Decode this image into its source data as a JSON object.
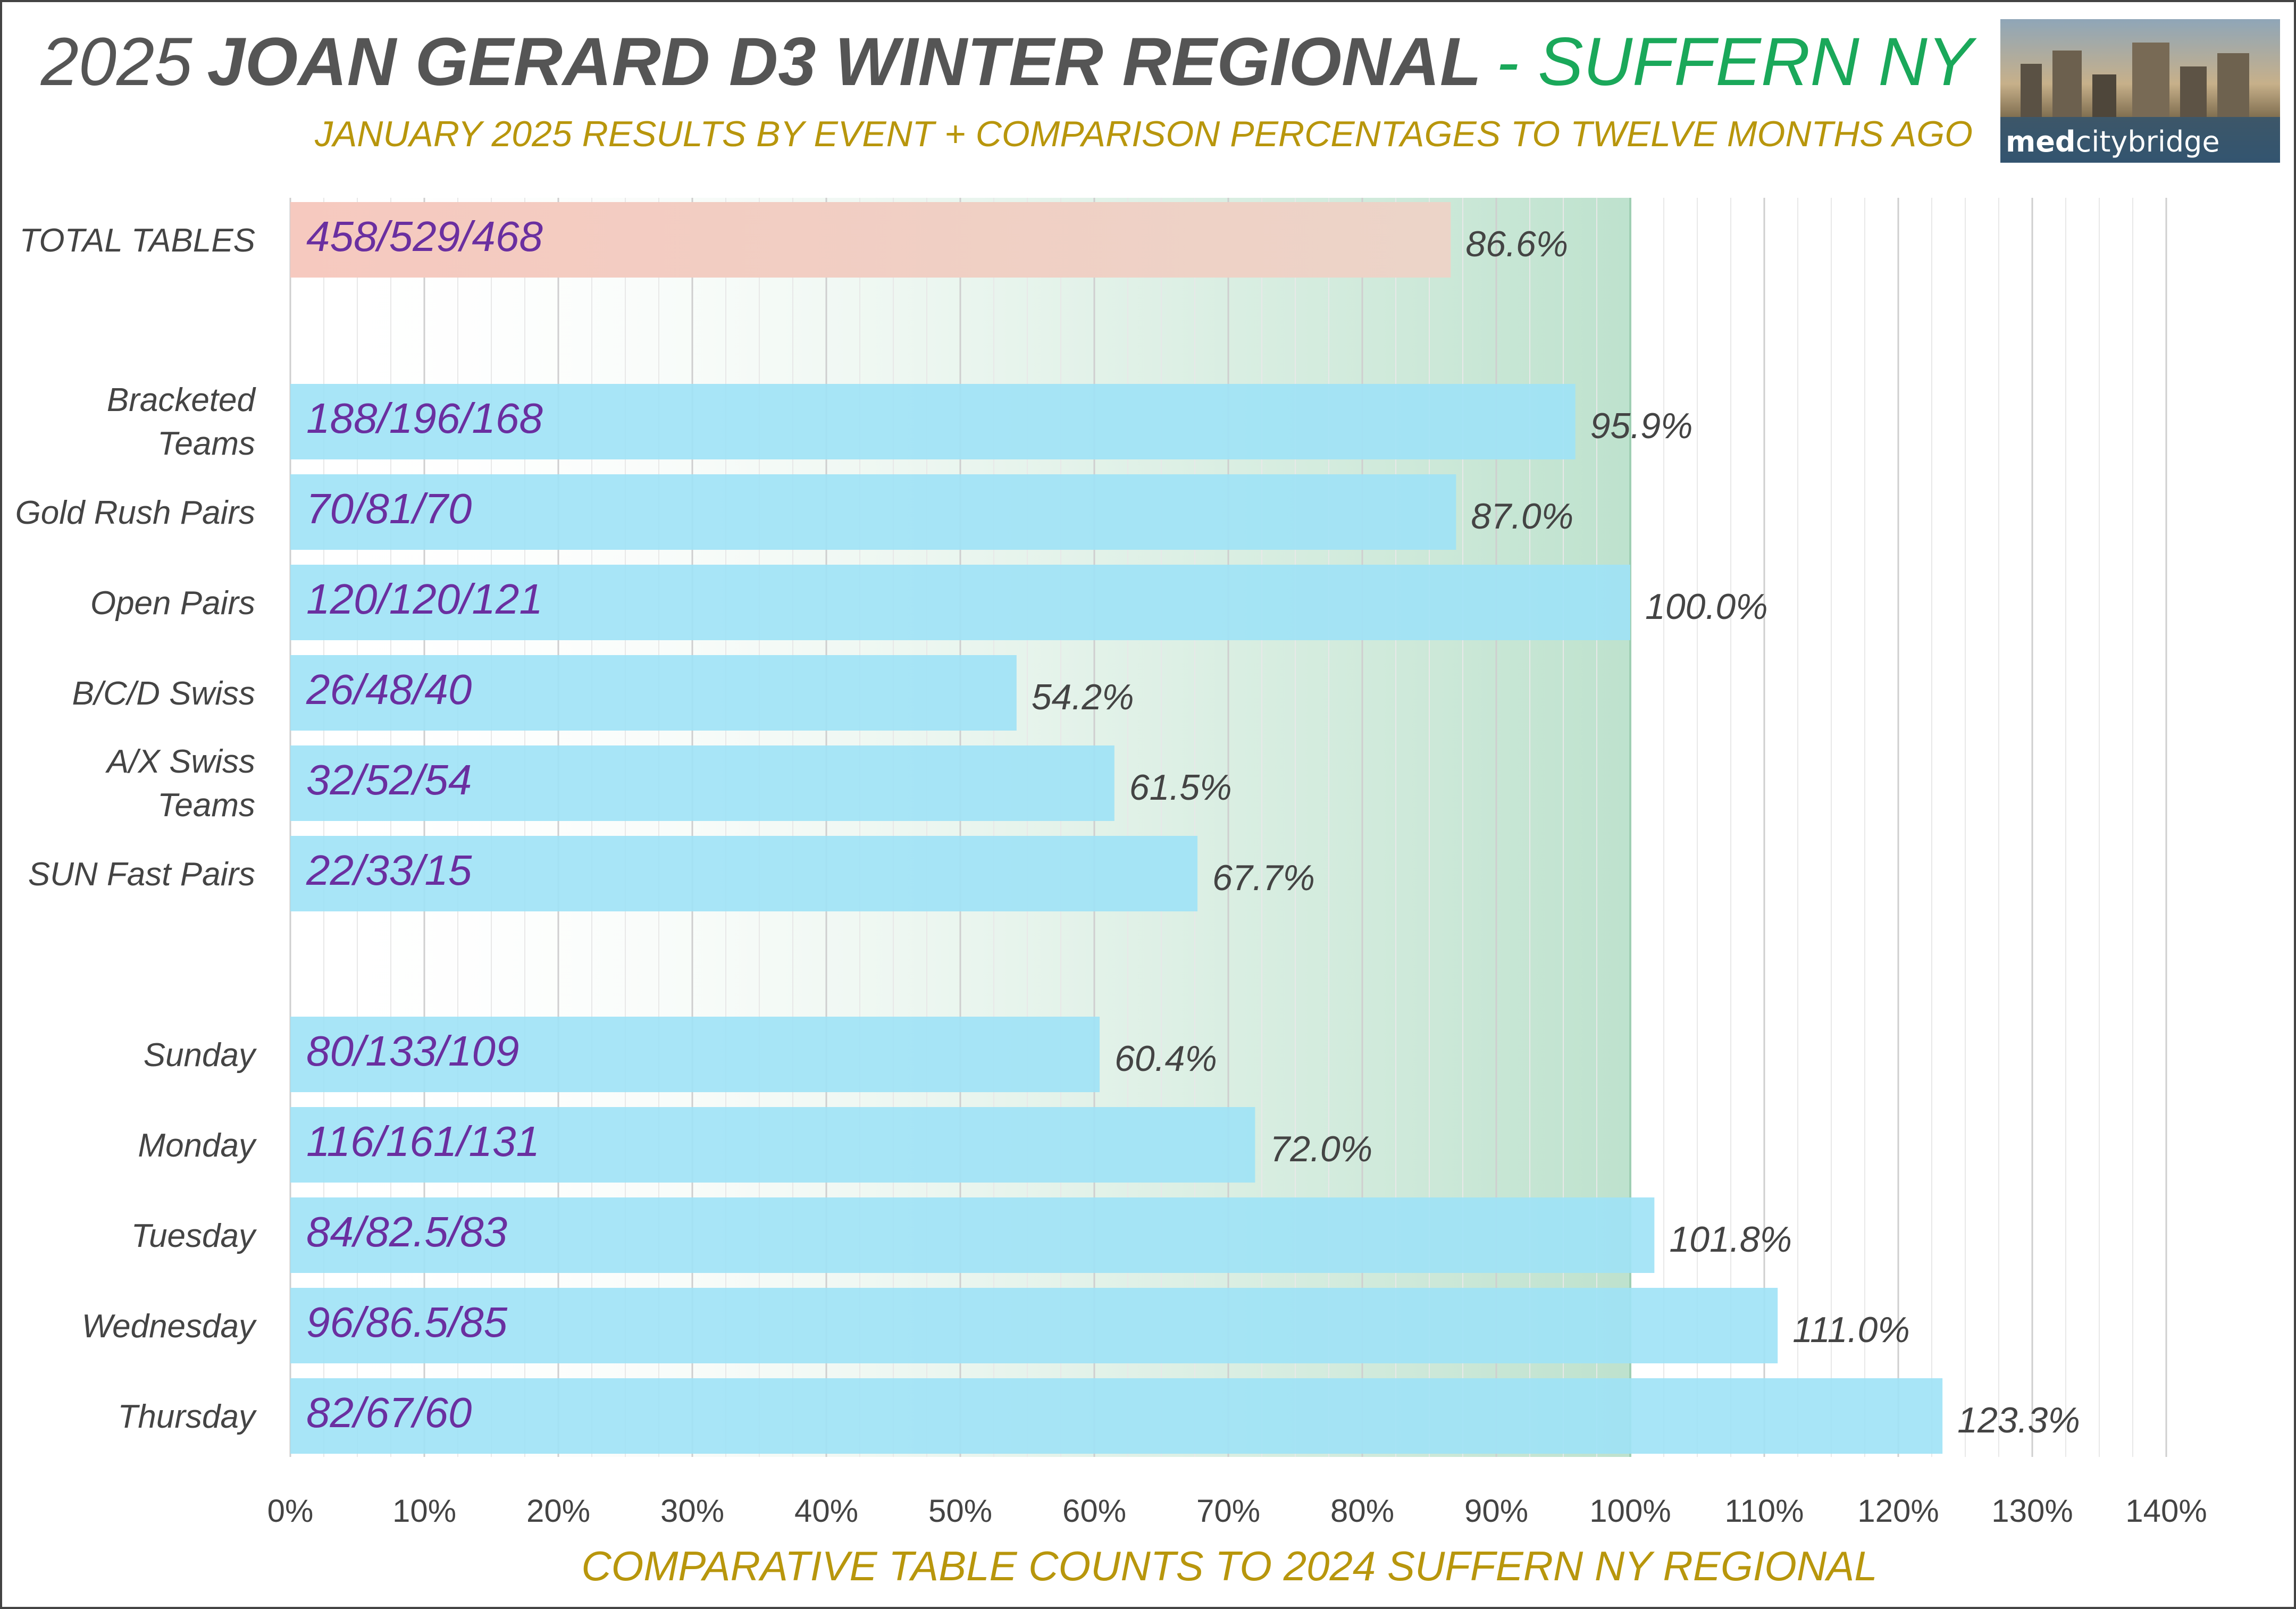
{
  "header": {
    "title_year": "2025",
    "title_main": "JOAN GERARD D3 WINTER REGIONAL",
    "title_location": "- SUFFERN NY",
    "subtitle": "JANUARY 2025 RESULTS BY EVENT + COMPARISON PERCENTAGES TO TWELVE MONTHS AGO"
  },
  "logo": {
    "brand_bold": "med",
    "brand_rest": "citybridge",
    "icon": "city-skyline-photo"
  },
  "colors": {
    "total_bar": "#f6c9bf",
    "event_bar": "#9ee2f6",
    "title_grey": "#555555",
    "title_green": "#1aa85a",
    "subtitle_gold": "#b8960c",
    "inbar_purple": "#6a2fa0",
    "highlight_green": "#a8d8bd"
  },
  "chart_data": {
    "type": "bar",
    "orientation": "horizontal",
    "title": "2025 JOAN GERARD D3 WINTER REGIONAL - SUFFERN NY",
    "subtitle": "JANUARY 2025 RESULTS BY EVENT + COMPARISON PERCENTAGES TO TWELVE MONTHS AGO",
    "xlabel": "COMPARATIVE TABLE COUNTS TO 2024 SUFFERN NY REGIONAL",
    "ylabel": "",
    "xlim": [
      0,
      140
    ],
    "x_ticks": [
      "0%",
      "10%",
      "20%",
      "30%",
      "40%",
      "50%",
      "60%",
      "70%",
      "80%",
      "90%",
      "100%",
      "110%",
      "120%",
      "130%",
      "140%"
    ],
    "grid": "vertical",
    "highlight_band": [
      0,
      100
    ],
    "categories": [
      [
        "TOTAL TABLES"
      ],
      [
        "Bracketed",
        "Teams"
      ],
      [
        "Gold Rush Pairs"
      ],
      [
        "Open Pairs"
      ],
      [
        "B/C/D Swiss"
      ],
      [
        "A/X Swiss",
        "Teams"
      ],
      [
        "SUN Fast Pairs"
      ],
      [
        "Sunday"
      ],
      [
        "Monday"
      ],
      [
        "Tuesday"
      ],
      [
        "Wednesday"
      ],
      [
        "Thursday"
      ]
    ],
    "values": [
      86.6,
      95.9,
      87.0,
      100.0,
      54.2,
      61.5,
      67.7,
      60.4,
      72.0,
      101.8,
      111.0,
      123.3
    ],
    "value_labels": [
      "86.6%",
      "95.9%",
      "87.0%",
      "100.0%",
      "54.2%",
      "61.5%",
      "67.7%",
      "60.4%",
      "72.0%",
      "101.8%",
      "111.0%",
      "123.3%"
    ],
    "table_counts": [
      "458/529/468",
      "188/196/168",
      "70/81/70",
      "120/120/121",
      "26/48/40",
      "32/52/54",
      "22/33/15",
      "80/133/109",
      "116/161/131",
      "84/82.5/83",
      "96/86.5/85",
      "82/67/60"
    ],
    "groups": [
      "total",
      "event",
      "event",
      "event",
      "event",
      "event",
      "event",
      "day",
      "day",
      "day",
      "day",
      "day"
    ]
  }
}
